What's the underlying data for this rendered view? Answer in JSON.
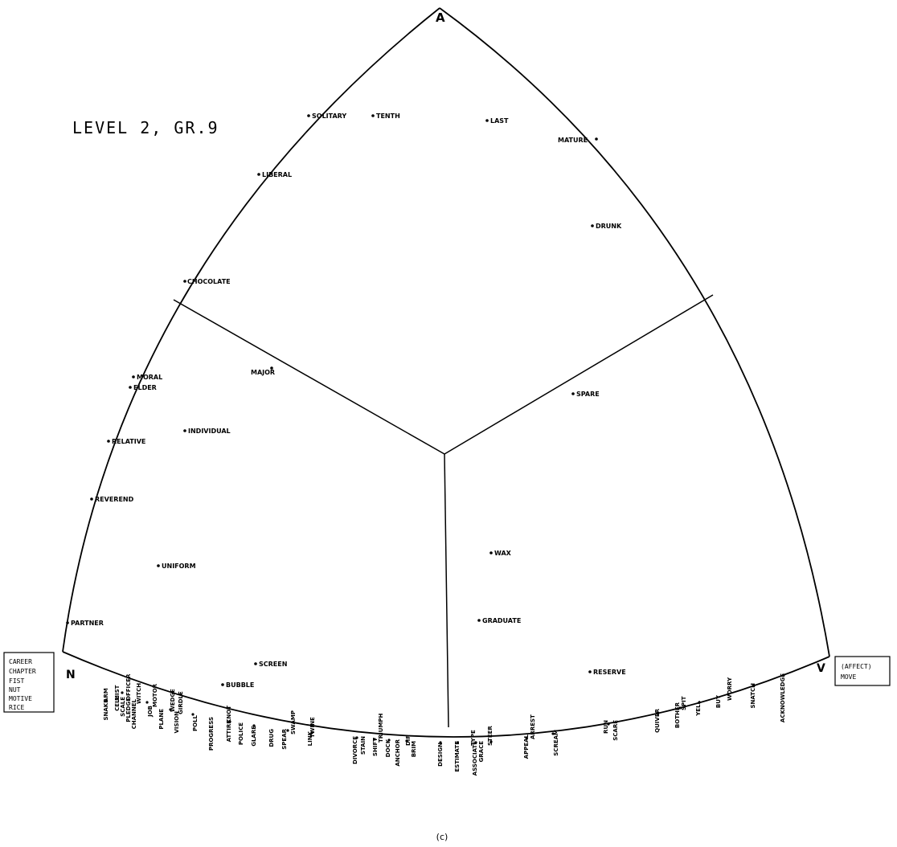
{
  "title": "LEVEL 2, GR.9",
  "caption": "(c)",
  "vertices": {
    "A": "A",
    "N": "N",
    "V": "V"
  },
  "left_box": [
    "CAREER",
    "CHAPTER",
    "FIST",
    "NUT",
    "MOTIVE",
    "RICE"
  ],
  "right_box": [
    "(AFFECT)",
    "MOVE"
  ],
  "interior_words": [
    "SOLITARY",
    "TENTH",
    "LAST",
    "MATURE",
    "LIBERAL",
    "DRUNK",
    "CHOCOLATE",
    "MORAL",
    "ELDER",
    "MAJOR",
    "INDIVIDUAL",
    "RELATIVE",
    "REVEREND",
    "UNIFORM",
    "PARTNER",
    "SCREEN",
    "BUBBLE",
    "SPARE",
    "WAX",
    "GRADUATE",
    "RESERVE"
  ],
  "bottom_labels": [
    "SNAKE",
    "ARM",
    "CELL",
    "MIST",
    "SCALE",
    "OFFICER",
    "PLEDGE",
    "WITCH",
    "CHANNEL",
    "JOB",
    "MOTOR",
    "PLANE",
    "WEDGE",
    "GIRDLE",
    "VISION",
    "POLL",
    "PROGRESS",
    "KNOT",
    "ATTIRE",
    "POLICE",
    "GLARE",
    "DRUG",
    "SPEAR",
    "SWAMP",
    "LINK",
    "TWINE",
    "DIVORCE",
    "STAIN",
    "SHIFT",
    "TRIUMPH",
    "DOCK",
    "ANCHOR",
    "DIP",
    "BRIM",
    "DESIGN",
    "ESTIMATE",
    "TYPE",
    "ASSOCIATE",
    "GRACE",
    "STEER",
    "APPEAL",
    "ARREST",
    "SCREAM",
    "RUN",
    "SCARE",
    "QUIVER",
    "SPIT",
    "BOTHER",
    "YELL",
    "BUY",
    "WORRY",
    "SNATCH",
    "ACKNOWLEDGE"
  ]
}
